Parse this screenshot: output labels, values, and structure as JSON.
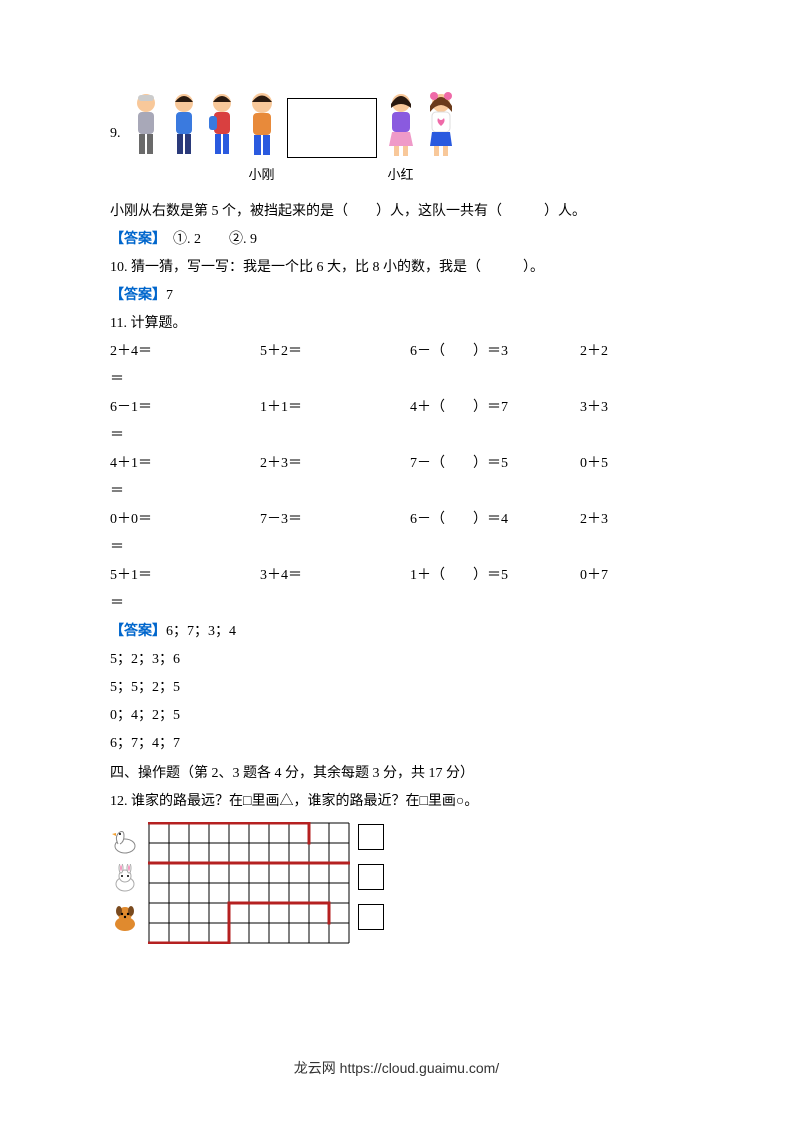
{
  "q9": {
    "number": "9.",
    "label_gang": "小刚",
    "label_hong": "小红",
    "text": "小刚从右数是第 5 个，被挡起来的是（　　）人，这队一共有（　　　）人。",
    "answer_prefix": "【答案】",
    "answer_body": "　①. 2　　②. 9"
  },
  "q10": {
    "text": "10. 猜一猜，写一写：我是一个比 6 大，比 8 小的数，我是（　　　）。",
    "answer_prefix": "【答案】",
    "answer_body": "7"
  },
  "q11": {
    "title": "11. 计算题。",
    "rows": [
      {
        "c1": "2＋4＝",
        "c2": "5＋2＝",
        "c3": "6－（　　）＝3",
        "c4": "2＋2"
      },
      {
        "cont": "＝"
      },
      {
        "c1": "6－1＝",
        "c2": "1＋1＝",
        "c3": "4＋（　　）＝7",
        "c4": "3＋3"
      },
      {
        "cont": "＝"
      },
      {
        "c1": "4＋1＝",
        "c2": "2＋3＝",
        "c3": "7－（　　）＝5",
        "c4": "0＋5"
      },
      {
        "cont": "＝"
      },
      {
        "c1": "0＋0＝",
        "c2": "7－3＝",
        "c3": "6－（　　）＝4",
        "c4": "2＋3"
      },
      {
        "cont": "＝"
      },
      {
        "c1": "5＋1＝",
        "c2": "3＋4＝",
        "c3": "1＋（　　）＝5",
        "c4": "0＋7"
      },
      {
        "cont": "＝"
      }
    ],
    "answer_prefix": "【答案】",
    "answer_first": "6；7；3；4",
    "answer_rest": [
      "5；2；3；6",
      "5；5；2；5",
      "0；4；2；5",
      "6；7；4；7"
    ]
  },
  "section4": "四、操作题（第 2、3 题各 4 分，其余每题 3 分，共 17 分）",
  "q12": {
    "text": "12. 谁家的路最远？在□里画△，谁家的路最近？在□里画○。"
  },
  "grid": {
    "cols": 10,
    "rows": 6,
    "cell": 20,
    "stroke": "#000000",
    "paths": [
      {
        "points": [
          [
            0,
            0
          ],
          [
            8,
            0
          ],
          [
            8,
            1
          ]
        ],
        "color": "#b52020",
        "width": 3
      },
      {
        "points": [
          [
            0,
            2
          ],
          [
            10,
            2
          ]
        ],
        "color": "#b52020",
        "width": 3
      },
      {
        "points": [
          [
            0,
            6
          ],
          [
            4,
            6
          ],
          [
            4,
            4
          ],
          [
            9,
            4
          ],
          [
            9,
            5
          ]
        ],
        "color": "#b52020",
        "width": 3
      }
    ]
  },
  "animals": {
    "goose": {
      "body": "#ffffff",
      "beak": "#f4a030"
    },
    "rabbit": {
      "body": "#ffffff",
      "inner": "#f49ac1"
    },
    "dog": {
      "body": "#e08a2e",
      "dark": "#7a4a1e"
    }
  },
  "children_colors": {
    "skin": "#f8c89a",
    "hair_dark": "#2a1a10",
    "hair_brown": "#6a3a1a",
    "shirt_blue": "#3a7adf",
    "shirt_red": "#d94040",
    "shirt_orange": "#e88a3a",
    "shirt_purple": "#8a5adf",
    "shirt_white": "#ffffff",
    "shirt_pink": "#ef6aa8",
    "pants_blue": "#2a5adf",
    "pants_navy": "#2a3a7a",
    "pants_gray": "#6a6a6a",
    "pants_pink": "#ef9ac8"
  },
  "footer": "龙云网 https://cloud.guaimu.com/"
}
